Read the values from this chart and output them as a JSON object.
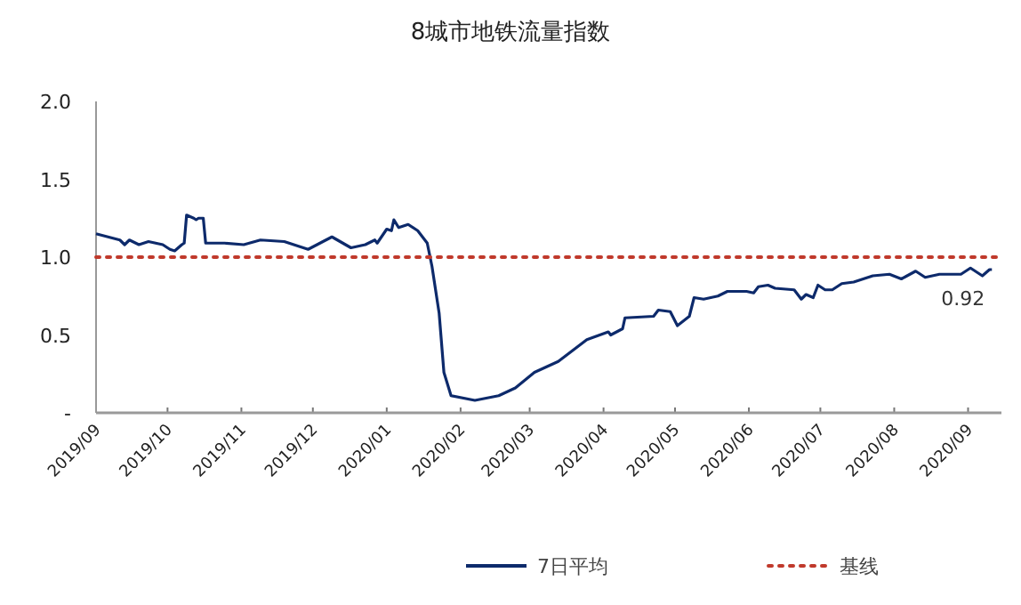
{
  "chart_data": {
    "type": "line",
    "title": "8城市地铁流量指数",
    "xlim": [
      "2019-09-01",
      "2020-09-15"
    ],
    "xticks": [
      {
        "value": "2019-09-01",
        "label": "2019/09"
      },
      {
        "value": "2019-10-01",
        "label": "2019/10"
      },
      {
        "value": "2019-11-01",
        "label": "2019/11"
      },
      {
        "value": "2019-12-01",
        "label": "2019/12"
      },
      {
        "value": "2020-01-01",
        "label": "2020/01"
      },
      {
        "value": "2020-02-01",
        "label": "2020/02"
      },
      {
        "value": "2020-03-01",
        "label": "2020/03"
      },
      {
        "value": "2020-04-01",
        "label": "2020/04"
      },
      {
        "value": "2020-05-01",
        "label": "2020/05"
      },
      {
        "value": "2020-06-01",
        "label": "2020/06"
      },
      {
        "value": "2020-07-01",
        "label": "2020/07"
      },
      {
        "value": "2020-08-01",
        "label": "2020/08"
      },
      {
        "value": "2020-09-01",
        "label": "2020/09"
      }
    ],
    "ylim": [
      0,
      2
    ],
    "yticks": [
      {
        "value": 0,
        "label": "-"
      },
      0.5,
      {
        "value": 1,
        "label": "1.0"
      },
      1.5,
      {
        "value": 2,
        "label": "2.0"
      }
    ],
    "grid": false,
    "legend": "bottom",
    "marker": "none",
    "series": [
      {
        "name": "7日平均",
        "color": "#0d2a6b",
        "line_style": "solid",
        "x": [
          "2019-09-01",
          "2019-09-11",
          "2019-09-13",
          "2019-09-15",
          "2019-09-19",
          "2019-09-23",
          "2019-09-29",
          "2019-10-02",
          "2019-10-04",
          "2019-10-07",
          "2019-10-08",
          "2019-10-09",
          "2019-10-12",
          "2019-10-13",
          "2019-10-14",
          "2019-10-16",
          "2019-10-17",
          "2019-10-25",
          "2019-11-02",
          "2019-11-09",
          "2019-11-19",
          "2019-11-29",
          "2019-12-09",
          "2019-12-17",
          "2019-12-23",
          "2019-12-27",
          "2019-12-28",
          "2020-01-01",
          "2020-01-03",
          "2020-01-04",
          "2020-01-06",
          "2020-01-10",
          "2020-01-14",
          "2020-01-18",
          "2020-01-20",
          "2020-01-23",
          "2020-01-25",
          "2020-01-28",
          "2020-02-07",
          "2020-02-17",
          "2020-02-24",
          "2020-03-03",
          "2020-03-13",
          "2020-03-25",
          "2020-04-03",
          "2020-04-04",
          "2020-04-09",
          "2020-04-10",
          "2020-04-22",
          "2020-04-24",
          "2020-04-29",
          "2020-05-02",
          "2020-05-07",
          "2020-05-09",
          "2020-05-13",
          "2020-05-19",
          "2020-05-23",
          "2020-05-31",
          "2020-06-03",
          "2020-06-05",
          "2020-06-09",
          "2020-06-12",
          "2020-06-20",
          "2020-06-23",
          "2020-06-25",
          "2020-06-28",
          "2020-06-30",
          "2020-07-03",
          "2020-07-06",
          "2020-07-10",
          "2020-07-15",
          "2020-07-23",
          "2020-07-30",
          "2020-08-04",
          "2020-08-10",
          "2020-08-14",
          "2020-08-20",
          "2020-08-29",
          "2020-09-02",
          "2020-09-07",
          "2020-09-10",
          "2020-09-11"
        ],
        "values": [
          1.15,
          1.11,
          1.08,
          1.11,
          1.08,
          1.1,
          1.08,
          1.05,
          1.04,
          1.08,
          1.09,
          1.27,
          1.25,
          1.24,
          1.25,
          1.25,
          1.09,
          1.09,
          1.08,
          1.11,
          1.1,
          1.05,
          1.13,
          1.06,
          1.08,
          1.11,
          1.09,
          1.18,
          1.17,
          1.24,
          1.19,
          1.21,
          1.17,
          1.09,
          0.94,
          0.64,
          0.26,
          0.11,
          0.08,
          0.11,
          0.16,
          0.26,
          0.33,
          0.47,
          0.52,
          0.5,
          0.54,
          0.61,
          0.62,
          0.66,
          0.65,
          0.56,
          0.62,
          0.74,
          0.73,
          0.75,
          0.78,
          0.78,
          0.77,
          0.81,
          0.82,
          0.8,
          0.79,
          0.73,
          0.76,
          0.74,
          0.82,
          0.79,
          0.79,
          0.83,
          0.84,
          0.88,
          0.89,
          0.86,
          0.91,
          0.87,
          0.89,
          0.89,
          0.93,
          0.88,
          0.92,
          0.92
        ]
      },
      {
        "name": "基线",
        "color": "#c0392b",
        "line_style": "dotted",
        "x": [
          "2019-09-01",
          "2020-09-15"
        ],
        "values": [
          1.0,
          1.0
        ]
      }
    ],
    "annotations": [
      {
        "text": "0.92",
        "x": "2020-09-11",
        "y": 0.92
      }
    ]
  }
}
